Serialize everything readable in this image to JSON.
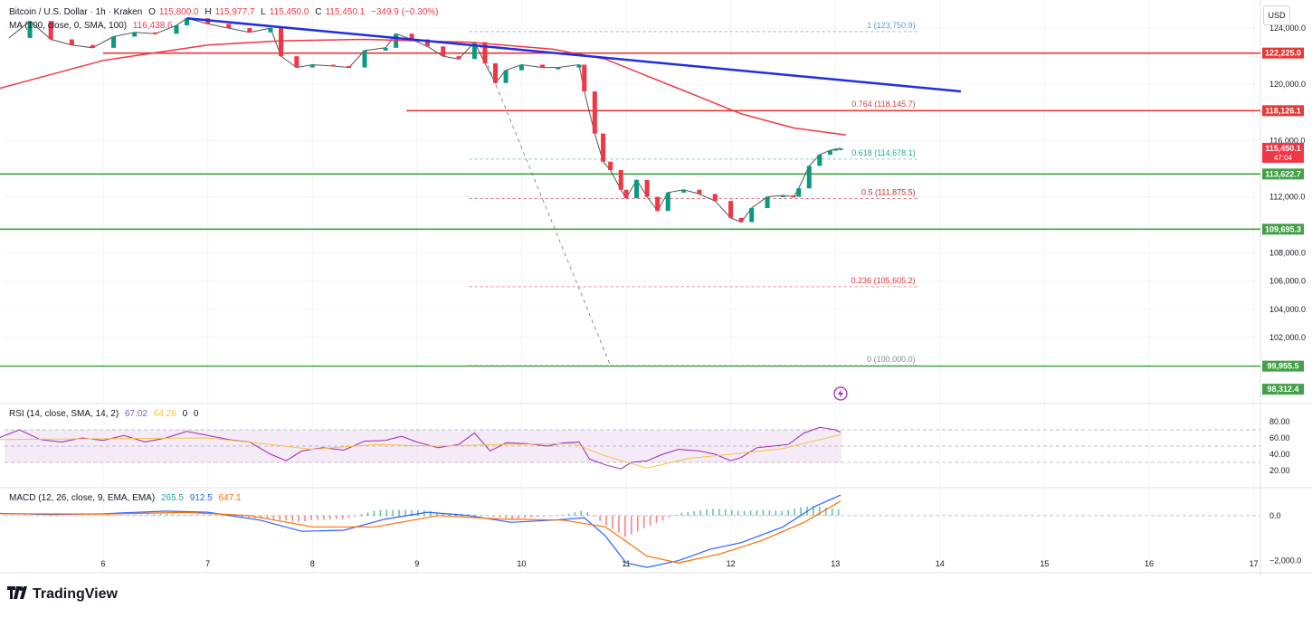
{
  "legend": {
    "symbol": "Bitcoin / U.S. Dollar · 1h · Kraken",
    "o_label": "O",
    "o_value": "115,800.0",
    "h_label": "H",
    "h_value": "115,977.7",
    "l_label": "L",
    "l_value": "115,450.0",
    "c_label": "C",
    "c_value": "115,450.1",
    "change": "−349.9 (−0.30%)",
    "ma": "MA (100, close, 0, SMA, 100)",
    "ma_value": "116,438.6",
    "rsi": "RSI (14, close, SMA, 14, 2)",
    "rsi_value": "67.02",
    "rsi_ma_value": "64.26",
    "rsi_z1": "0",
    "rsi_z2": "0",
    "macd": "MACD (12, 26, close, 9, EMA, EMA)",
    "macd_hist": "265.5",
    "macd_value": "912.5",
    "macd_signal": "647.1"
  },
  "currency_button": "USD",
  "brand": "TradingView",
  "colors": {
    "up": "#089981",
    "down": "#f23645",
    "ma": "#f23645",
    "trendline": "#1e2ee0",
    "resistance": "#e53935",
    "support": "#43a047",
    "fib": "#78909c",
    "rsi": "#9c27b0",
    "rsi_ma": "#f6c343",
    "macd": "#2962ff",
    "signal": "#ff6d00"
  },
  "chart_data": {
    "type": "candlestick",
    "symbol": "BTCUSD",
    "timeframe": "1h",
    "x_axis": {
      "ticks": [
        "6",
        "7",
        "8",
        "9",
        "10",
        "11",
        "12",
        "13",
        "14",
        "15",
        "16",
        "17"
      ]
    },
    "y_axis": {
      "range": [
        98000,
        126000
      ],
      "ticks": [
        {
          "value": 124000,
          "label": "124,000.0"
        },
        {
          "value": 120000,
          "label": "120,000.0"
        },
        {
          "value": 116000,
          "label": "116,000.0"
        },
        {
          "value": 112000,
          "label": "112,000.0"
        },
        {
          "value": 108000,
          "label": "108,000.0"
        },
        {
          "value": 106000,
          "label": "106,000.0"
        },
        {
          "value": 104000,
          "label": "104,000.0"
        },
        {
          "value": 102000,
          "label": "102,000.0"
        }
      ]
    },
    "price_path": [
      [
        5.1,
        123300
      ],
      [
        5.3,
        124500
      ],
      [
        5.5,
        123200
      ],
      [
        5.7,
        122800
      ],
      [
        5.9,
        122600
      ],
      [
        6.1,
        123400
      ],
      [
        6.3,
        123700
      ],
      [
        6.5,
        123600
      ],
      [
        6.7,
        124200
      ],
      [
        6.8,
        124700
      ],
      [
        7.0,
        124300
      ],
      [
        7.2,
        124000
      ],
      [
        7.4,
        123700
      ],
      [
        7.6,
        124000
      ],
      [
        7.7,
        122000
      ],
      [
        7.85,
        121200
      ],
      [
        8.0,
        121400
      ],
      [
        8.2,
        121300
      ],
      [
        8.35,
        121200
      ],
      [
        8.5,
        122400
      ],
      [
        8.7,
        122600
      ],
      [
        8.8,
        123600
      ],
      [
        8.95,
        123200
      ],
      [
        9.1,
        122700
      ],
      [
        9.25,
        122000
      ],
      [
        9.4,
        121800
      ],
      [
        9.55,
        123000
      ],
      [
        9.65,
        121500
      ],
      [
        9.75,
        120100
      ],
      [
        9.85,
        121000
      ],
      [
        10.0,
        121400
      ],
      [
        10.2,
        121200
      ],
      [
        10.35,
        121200
      ],
      [
        10.55,
        121400
      ],
      [
        10.6,
        119500
      ],
      [
        10.7,
        116500
      ],
      [
        10.78,
        114500
      ],
      [
        10.85,
        113900
      ],
      [
        10.95,
        112500
      ],
      [
        11.0,
        111900
      ],
      [
        11.1,
        113200
      ],
      [
        11.2,
        112000
      ],
      [
        11.3,
        111000
      ],
      [
        11.4,
        112300
      ],
      [
        11.55,
        112500
      ],
      [
        11.7,
        112200
      ],
      [
        11.85,
        111700
      ],
      [
        12.0,
        110500
      ],
      [
        12.1,
        110200
      ],
      [
        12.2,
        111200
      ],
      [
        12.35,
        112000
      ],
      [
        12.5,
        112100
      ],
      [
        12.6,
        112000
      ],
      [
        12.65,
        112600
      ],
      [
        12.75,
        114200
      ],
      [
        12.85,
        115000
      ],
      [
        12.95,
        115300
      ],
      [
        13.0,
        115400
      ],
      [
        13.05,
        115450
      ]
    ],
    "ma_path": [
      [
        5.0,
        119700
      ],
      [
        6.0,
        121700
      ],
      [
        7.0,
        122800
      ],
      [
        7.7,
        123100
      ],
      [
        8.5,
        123200
      ],
      [
        9.5,
        123000
      ],
      [
        10.3,
        122500
      ],
      [
        10.8,
        121800
      ],
      [
        11.2,
        120600
      ],
      [
        11.6,
        119400
      ],
      [
        12.1,
        117900
      ],
      [
        12.6,
        116900
      ],
      [
        13.1,
        116400
      ]
    ],
    "horizontal_levels": [
      {
        "value": 122225.0,
        "label": "122,225.0",
        "color": "#e53935",
        "x_start": 6.0
      },
      {
        "value": 118126.1,
        "label": "118,126.1",
        "color": "#e53935",
        "x_start": 8.9
      },
      {
        "value": 113622.7,
        "label": "113,622.7",
        "color": "#43a047",
        "x_start": 5.0
      },
      {
        "value": 109695.3,
        "label": "109,695.3",
        "color": "#43a047",
        "x_start": 5.0
      },
      {
        "value": 99955.5,
        "label": "99,955.5",
        "color": "#43a047",
        "x_start": 5.0
      }
    ],
    "trendline": {
      "from": [
        6.8,
        124700
      ],
      "to": [
        14.2,
        119500
      ]
    },
    "fibonacci": [
      {
        "ratio": "1",
        "value": 123750.9,
        "label": "1 (123,750.9)",
        "color": "#5b9bd5"
      },
      {
        "ratio": "0.764",
        "value": 118145.7,
        "label": "0.764 (118,145.7)",
        "color": "#e53935"
      },
      {
        "ratio": "0.618",
        "value": 114678.1,
        "label": "0.618 (114,678.1)",
        "color": "#26a69a"
      },
      {
        "ratio": "0.5",
        "value": 111875.5,
        "label": "0.5 (111,875.5)",
        "color": "#c62828"
      },
      {
        "ratio": "0.236",
        "value": 105605.2,
        "label": "0.236 (105,605.2)",
        "color": "#e53935"
      },
      {
        "ratio": "0",
        "value": 100000.0,
        "label": "0 (100,000.0)",
        "color": "#78909c"
      }
    ],
    "fib_span": [
      9.5,
      13.8
    ],
    "fib_diagonal": {
      "from": [
        9.6,
        122800
      ],
      "to": [
        10.85,
        100000
      ]
    },
    "price_badges": [
      {
        "value": 115450.1,
        "label": "115,450.1",
        "sub": "47:04",
        "color": "#f23645"
      },
      {
        "value": 98312.4,
        "label": "98,312.4",
        "color": "#43a047"
      }
    ],
    "rsi": {
      "range": [
        0,
        100
      ],
      "ticks": [
        80,
        60,
        40,
        20
      ],
      "band": [
        30,
        70
      ],
      "path": [
        [
          5.0,
          60
        ],
        [
          5.2,
          70
        ],
        [
          5.4,
          58
        ],
        [
          5.6,
          55
        ],
        [
          5.8,
          60
        ],
        [
          6.0,
          57
        ],
        [
          6.2,
          63
        ],
        [
          6.4,
          55
        ],
        [
          6.6,
          60
        ],
        [
          6.8,
          68
        ],
        [
          7.0,
          63
        ],
        [
          7.2,
          58
        ],
        [
          7.4,
          55
        ],
        [
          7.6,
          40
        ],
        [
          7.75,
          32
        ],
        [
          7.9,
          44
        ],
        [
          8.1,
          48
        ],
        [
          8.3,
          45
        ],
        [
          8.5,
          56
        ],
        [
          8.7,
          57
        ],
        [
          8.85,
          62
        ],
        [
          9.0,
          55
        ],
        [
          9.2,
          48
        ],
        [
          9.4,
          52
        ],
        [
          9.55,
          66
        ],
        [
          9.7,
          44
        ],
        [
          9.85,
          54
        ],
        [
          10.05,
          53
        ],
        [
          10.25,
          50
        ],
        [
          10.4,
          54
        ],
        [
          10.55,
          55
        ],
        [
          10.65,
          34
        ],
        [
          10.8,
          27
        ],
        [
          10.95,
          22
        ],
        [
          11.05,
          30
        ],
        [
          11.2,
          32
        ],
        [
          11.35,
          40
        ],
        [
          11.5,
          46
        ],
        [
          11.7,
          44
        ],
        [
          11.85,
          40
        ],
        [
          12.0,
          32
        ],
        [
          12.1,
          36
        ],
        [
          12.25,
          48
        ],
        [
          12.4,
          50
        ],
        [
          12.55,
          52
        ],
        [
          12.7,
          66
        ],
        [
          12.85,
          73
        ],
        [
          13.0,
          70
        ],
        [
          13.05,
          67
        ]
      ],
      "ma_path": [
        [
          5.0,
          58
        ],
        [
          6.0,
          59
        ],
        [
          7.0,
          60
        ],
        [
          7.6,
          52
        ],
        [
          8.0,
          46
        ],
        [
          8.6,
          52
        ],
        [
          9.2,
          50
        ],
        [
          9.8,
          52
        ],
        [
          10.5,
          53
        ],
        [
          10.8,
          38
        ],
        [
          11.2,
          23
        ],
        [
          11.6,
          35
        ],
        [
          12.0,
          40
        ],
        [
          12.5,
          47
        ],
        [
          13.05,
          64
        ]
      ]
    },
    "macd": {
      "range": [
        -2500,
        1200
      ],
      "ticks": [
        {
          "value": 0,
          "label": "0.0"
        },
        {
          "value": -2000,
          "label": "−2,000.0"
        }
      ],
      "macd_path": [
        [
          5.0,
          100
        ],
        [
          5.5,
          50
        ],
        [
          6.0,
          80
        ],
        [
          6.6,
          200
        ],
        [
          7.0,
          150
        ],
        [
          7.5,
          -200
        ],
        [
          7.9,
          -700
        ],
        [
          8.3,
          -650
        ],
        [
          8.7,
          -150
        ],
        [
          9.1,
          150
        ],
        [
          9.5,
          0
        ],
        [
          9.9,
          -300
        ],
        [
          10.3,
          -200
        ],
        [
          10.6,
          -100
        ],
        [
          10.8,
          -900
        ],
        [
          11.0,
          -2100
        ],
        [
          11.2,
          -2300
        ],
        [
          11.5,
          -2000
        ],
        [
          11.8,
          -1500
        ],
        [
          12.1,
          -1200
        ],
        [
          12.5,
          -500
        ],
        [
          12.8,
          400
        ],
        [
          13.05,
          912
        ]
      ],
      "signal_path": [
        [
          5.0,
          80
        ],
        [
          6.0,
          70
        ],
        [
          6.8,
          140
        ],
        [
          7.4,
          0
        ],
        [
          8.0,
          -500
        ],
        [
          8.6,
          -500
        ],
        [
          9.2,
          0
        ],
        [
          9.8,
          -150
        ],
        [
          10.4,
          -200
        ],
        [
          10.8,
          -500
        ],
        [
          11.2,
          -1800
        ],
        [
          11.5,
          -2100
        ],
        [
          11.9,
          -1700
        ],
        [
          12.3,
          -1100
        ],
        [
          12.7,
          -300
        ],
        [
          13.05,
          647
        ]
      ]
    }
  }
}
